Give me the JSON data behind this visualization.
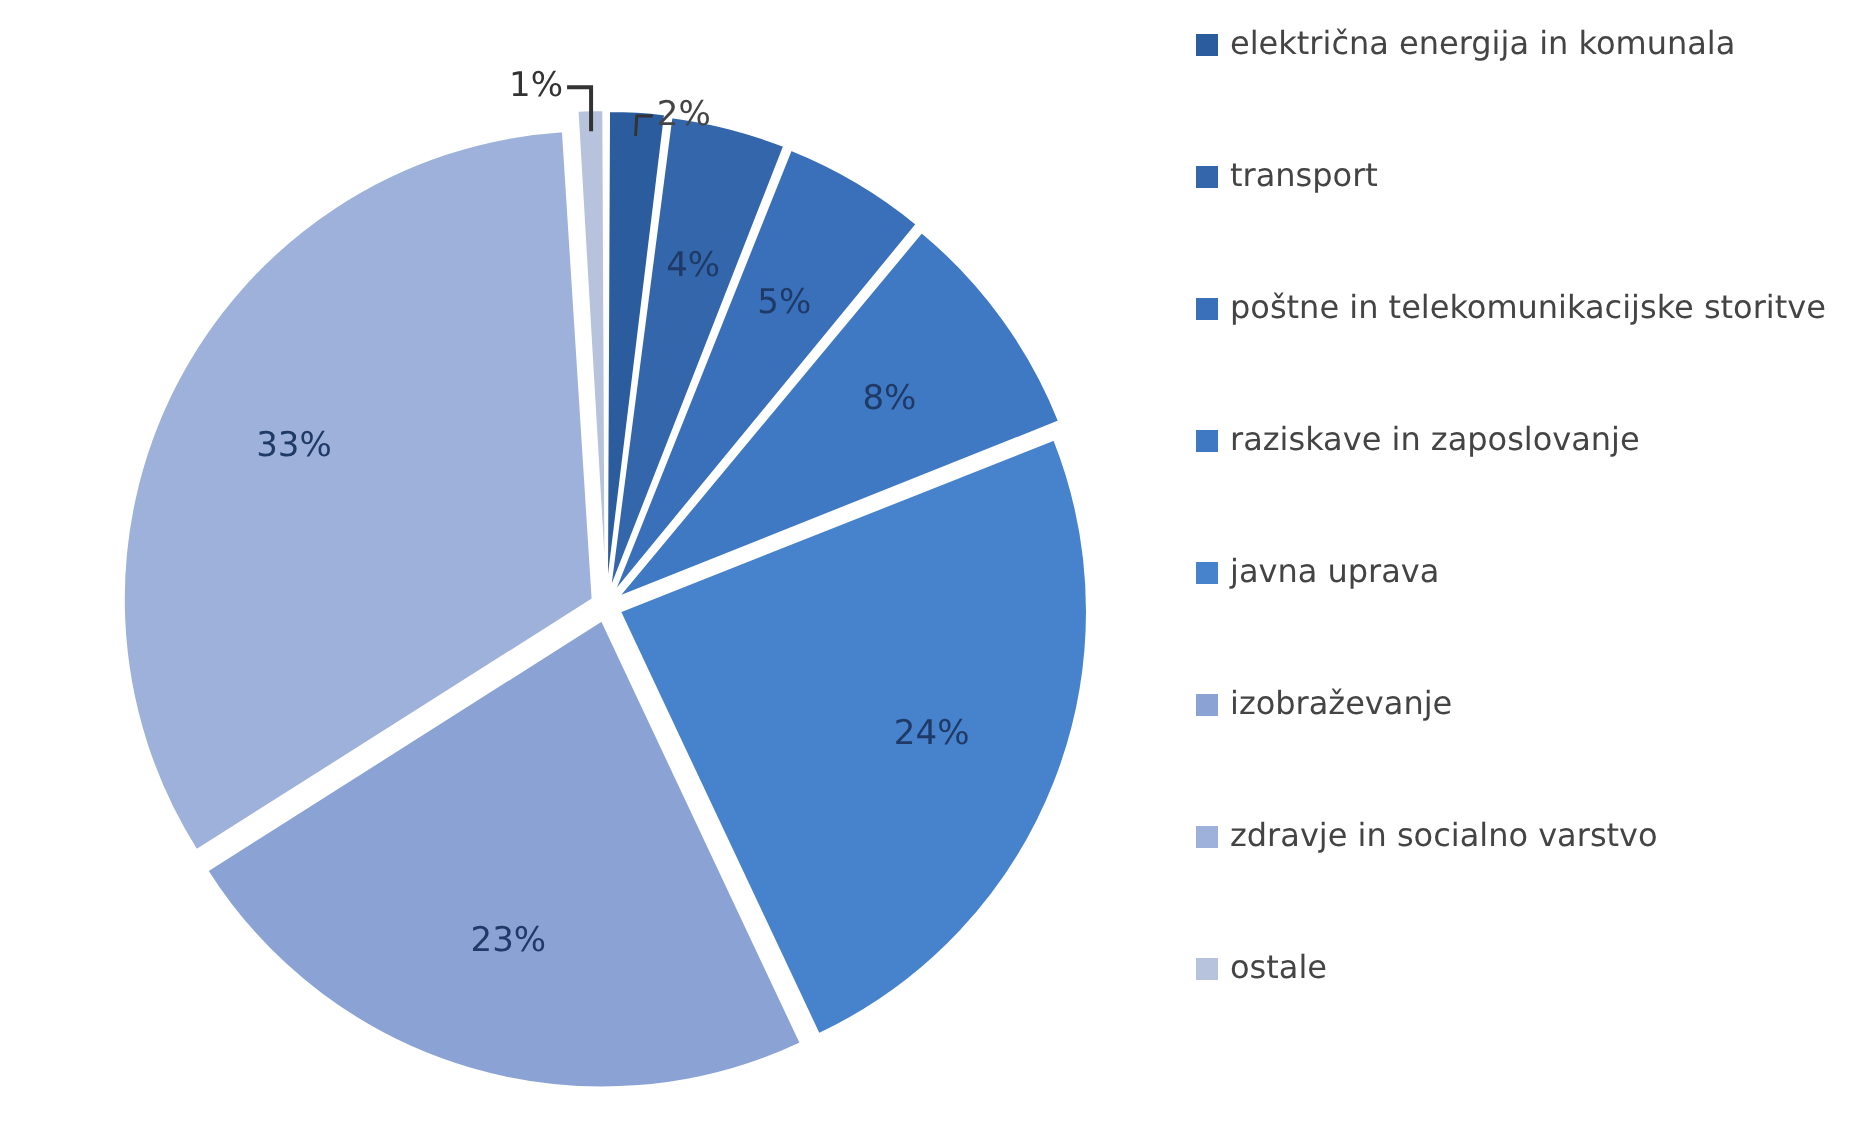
{
  "chart_data": {
    "type": "pie",
    "categories": [
      "električna energija in komunala",
      "transport",
      "poštne in telekomunikacijske storitve",
      "raziskave in zaposlovanje",
      "javna uprava",
      "izobraževanje",
      "zdravje in socialno varstvo",
      "ostale"
    ],
    "values": [
      2,
      4,
      5,
      8,
      24,
      23,
      33,
      1
    ],
    "colors": [
      "#2b5c9e",
      "#3366ab",
      "#3a70ba",
      "#3f79c4",
      "#4683cc",
      "#8aa3d4",
      "#9db1da",
      "#b7c2dc"
    ],
    "value_labels": [
      "2%",
      "4%",
      "5%",
      "8%",
      "24%",
      "23%",
      "33%",
      "1%"
    ],
    "legend": "right"
  }
}
